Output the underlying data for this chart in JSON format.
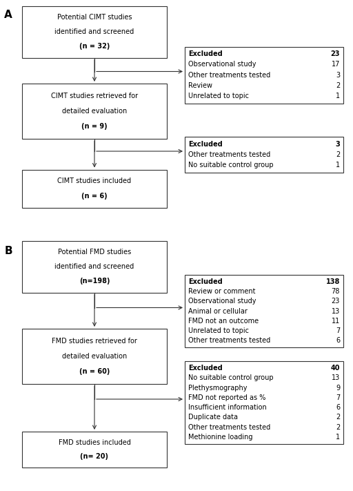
{
  "bg_color": "#ffffff",
  "box_edge_color": "#333333",
  "box_face_color": "#ffffff",
  "text_color": "#000000",
  "arrow_color": "#333333",
  "font_size": 7.0,
  "label_font_size": 11,
  "section_A": {
    "label": "A",
    "flow_boxes": [
      {
        "lines": [
          "Potential CIMT studies",
          "identified and screened",
          "(n = 32)"
        ],
        "bold_last": true
      },
      {
        "lines": [
          "CIMT studies retrieved for",
          "detailed evaluation",
          "(n = 9)"
        ],
        "bold_last": true
      },
      {
        "lines": [
          "CIMT studies included",
          "(n = 6)"
        ],
        "bold_last": true
      }
    ],
    "excl_boxes": [
      {
        "title": "Excluded",
        "total": "23",
        "rows": [
          [
            "Observational study",
            "17"
          ],
          [
            "Other treatments tested",
            "3"
          ],
          [
            "Review",
            "2"
          ],
          [
            "Unrelated to topic",
            "1"
          ]
        ]
      },
      {
        "title": "Excluded",
        "total": "3",
        "rows": [
          [
            "Other treatments tested",
            "2"
          ],
          [
            "No suitable control group",
            "1"
          ]
        ]
      }
    ]
  },
  "section_B": {
    "label": "B",
    "flow_boxes": [
      {
        "lines": [
          "Potential FMD studies",
          "identified and screened",
          "(n=198)"
        ],
        "bold_last": true
      },
      {
        "lines": [
          "FMD studies retrieved for",
          "detailed evaluation",
          "(n = 60)"
        ],
        "bold_last": true
      },
      {
        "lines": [
          "FMD studies included",
          "(n= 20)"
        ],
        "bold_last": true
      }
    ],
    "excl_boxes": [
      {
        "title": "Excluded",
        "total": "138",
        "rows": [
          [
            "Review or comment",
            "78"
          ],
          [
            "Observational study",
            "23"
          ],
          [
            "Animal or cellular",
            "13"
          ],
          [
            "FMD not an outcome",
            "11"
          ],
          [
            "Unrelated to topic",
            "7"
          ],
          [
            "Other treatments tested",
            "6"
          ]
        ]
      },
      {
        "title": "Excluded",
        "total": "40",
        "rows": [
          [
            "No suitable control group",
            "13"
          ],
          [
            "Plethysmography",
            "9"
          ],
          [
            "FMD not reported as %",
            "7"
          ],
          [
            "Insufficient information",
            "6"
          ],
          [
            "Duplicate data",
            "2"
          ],
          [
            "Other treatments tested",
            "2"
          ],
          [
            "Methionine loading",
            "1"
          ]
        ]
      }
    ]
  }
}
